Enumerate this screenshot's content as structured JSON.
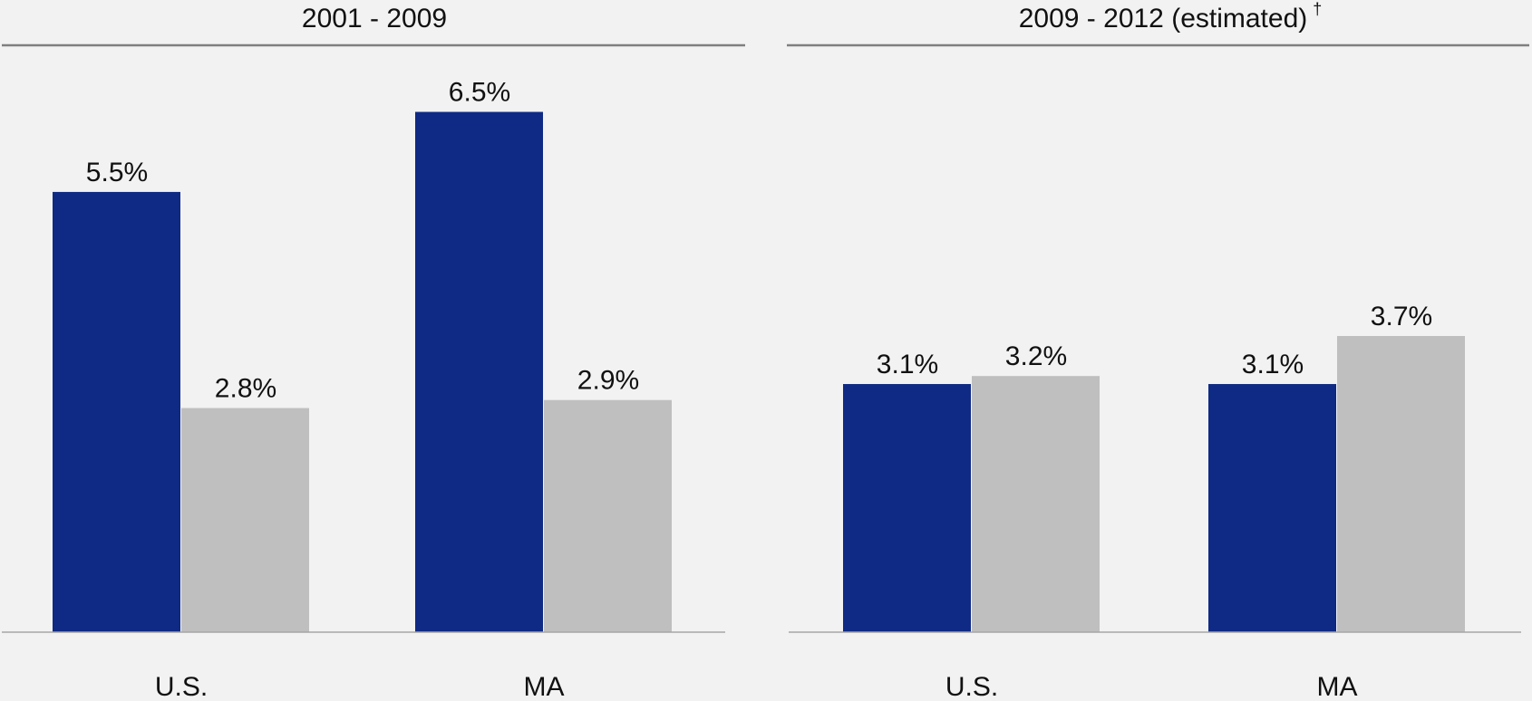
{
  "chart_data": [
    {
      "type": "bar",
      "title": "2001 - 2009",
      "categories": [
        "U.S.",
        "MA"
      ],
      "series": [
        {
          "color": "#0e2a84",
          "values": [
            5.5,
            6.5
          ],
          "value_labels": [
            "5.5%",
            "6.5%"
          ]
        },
        {
          "color": "#bfbfbf",
          "values": [
            2.8,
            2.9
          ],
          "value_labels": [
            "2.8%",
            "2.9%"
          ]
        }
      ],
      "ylim": [
        0,
        7.4
      ]
    },
    {
      "type": "bar",
      "title": "2009 - 2012 (estimated)",
      "title_note": "†",
      "categories": [
        "U.S.",
        "MA"
      ],
      "series": [
        {
          "color": "#0e2a84",
          "values": [
            3.1,
            3.1
          ],
          "value_labels": [
            "3.1%",
            "3.1%"
          ]
        },
        {
          "color": "#bfbfbf",
          "values": [
            3.2,
            3.7
          ],
          "value_labels": [
            "3.2%",
            "3.7%"
          ]
        }
      ],
      "ylim": [
        0,
        7.4
      ]
    }
  ]
}
